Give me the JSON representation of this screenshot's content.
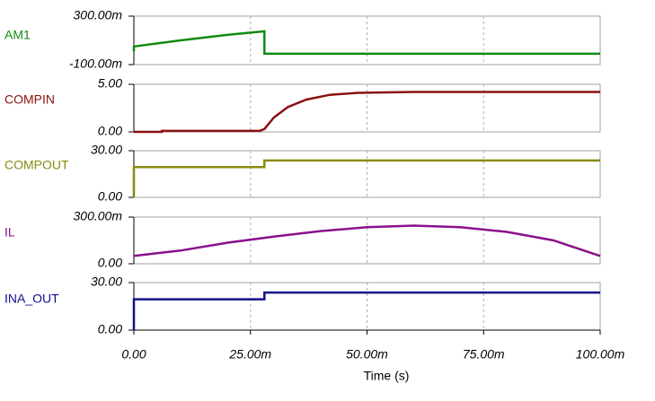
{
  "chart_data": [
    {
      "type": "line",
      "series": [
        {
          "name": "AM1",
          "color": "#118a11",
          "x": [
            0,
            0,
            0.01,
            0.02,
            0.028,
            0.028,
            0.1
          ],
          "values": [
            0.01,
            0.05,
            0.1,
            0.145,
            0.175,
            -0.01,
            -0.01
          ]
        }
      ],
      "xlim": [
        0,
        0.1
      ],
      "xticks": [
        0,
        0.025,
        0.05,
        0.075,
        0.1
      ],
      "ylim": [
        -0.1,
        0.3
      ],
      "yticks": [
        {
          "value": -0.1,
          "label": "-100.00m"
        },
        {
          "value": 0.3,
          "label": "300.00m"
        }
      ],
      "grid": true
    },
    {
      "type": "line",
      "series": [
        {
          "name": "COMPIN",
          "color": "#8b1010",
          "x": [
            0,
            0.006,
            0.006,
            0.027,
            0.028,
            0.03,
            0.033,
            0.037,
            0.042,
            0.048,
            0.06,
            0.1
          ],
          "values": [
            0,
            0,
            0.1,
            0.1,
            0.3,
            1.5,
            2.6,
            3.4,
            3.9,
            4.1,
            4.2,
            4.2
          ]
        }
      ],
      "xlim": [
        0,
        0.1
      ],
      "xticks": [
        0,
        0.025,
        0.05,
        0.075,
        0.1
      ],
      "ylim": [
        0,
        5
      ],
      "yticks": [
        {
          "value": 0,
          "label": "0.00"
        },
        {
          "value": 5,
          "label": "5.00"
        }
      ],
      "grid": true
    },
    {
      "type": "line",
      "series": [
        {
          "name": "COMPOUT",
          "color": "#8a8a10",
          "x": [
            0,
            0,
            0.028,
            0.028,
            0.1
          ],
          "values": [
            0,
            19.5,
            19.5,
            23.7,
            23.7
          ]
        }
      ],
      "xlim": [
        0,
        0.1
      ],
      "xticks": [
        0,
        0.025,
        0.05,
        0.075,
        0.1
      ],
      "ylim": [
        0,
        30
      ],
      "yticks": [
        {
          "value": 0,
          "label": "0.00"
        },
        {
          "value": 30,
          "label": "30.00"
        }
      ],
      "grid": true
    },
    {
      "type": "line",
      "series": [
        {
          "name": "IL",
          "color": "#8b108b",
          "x": [
            0,
            0.01,
            0.02,
            0.03,
            0.04,
            0.05,
            0.06,
            0.07,
            0.08,
            0.09,
            0.1
          ],
          "values": [
            0.05,
            0.085,
            0.135,
            0.175,
            0.21,
            0.235,
            0.245,
            0.235,
            0.205,
            0.15,
            0.05
          ]
        }
      ],
      "xlim": [
        0,
        0.1
      ],
      "xticks": [
        0,
        0.025,
        0.05,
        0.075,
        0.1
      ],
      "ylim": [
        0,
        0.3
      ],
      "yticks": [
        {
          "value": 0,
          "label": "0.00"
        },
        {
          "value": 0.3,
          "label": "300.00m"
        }
      ],
      "grid": true
    },
    {
      "type": "line",
      "series": [
        {
          "name": "INA_OUT",
          "color": "#10108b",
          "x": [
            0,
            0,
            0.028,
            0.028,
            0.1
          ],
          "values": [
            0,
            19.5,
            19.5,
            23.7,
            23.7
          ]
        }
      ],
      "xlim": [
        0,
        0.1
      ],
      "xticks": [
        {
          "value": 0,
          "label": "0.00"
        },
        {
          "value": 0.025,
          "label": "25.00m"
        },
        {
          "value": 0.05,
          "label": "50.00m"
        },
        {
          "value": 0.075,
          "label": "75.00m"
        },
        {
          "value": 0.1,
          "label": "100.00m"
        }
      ],
      "xlabel": "Time (s)",
      "ylim": [
        0,
        30
      ],
      "yticks": [
        {
          "value": 0,
          "label": "0.00"
        },
        {
          "value": 30,
          "label": "30.00"
        }
      ],
      "grid": true
    }
  ]
}
